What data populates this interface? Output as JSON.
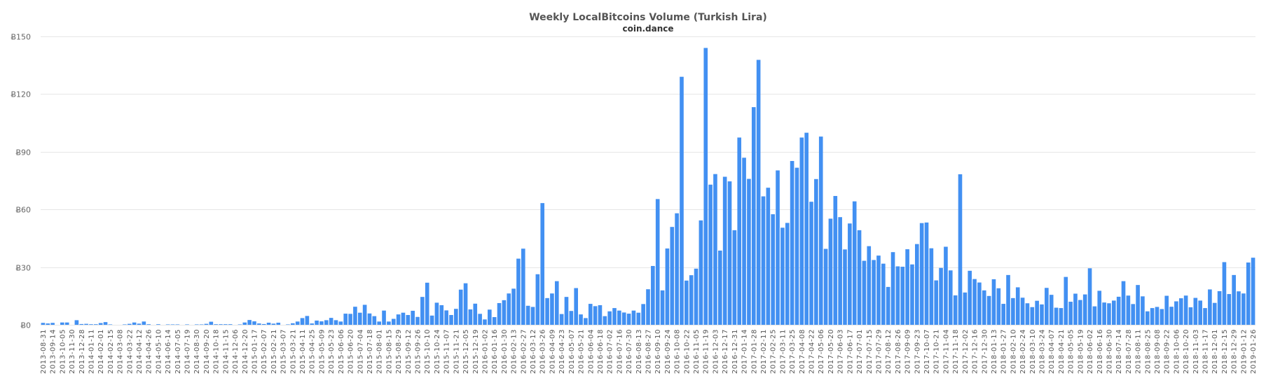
{
  "chart_data": {
    "type": "bar",
    "title": "Weekly LocalBitcoins Volume (Turkish Lira)",
    "subtitle": "coin.dance",
    "xlabel": "",
    "ylabel": "",
    "y_tick_prefix": "Ƀ",
    "yticks": [
      0,
      30,
      60,
      90,
      120,
      150
    ],
    "ylim": [
      0,
      150
    ],
    "grid": true,
    "legend": "none",
    "bar_color": "#4290f2",
    "categories": [
      "2013-08-31",
      "",
      "2013-09-14",
      "",
      "2013-10-05",
      "",
      "2013-11-30",
      "",
      "2013-12-28",
      "",
      "2014-01-11",
      "",
      "2014-02-01",
      "",
      "2014-02-15",
      "",
      "2014-03-08",
      "",
      "2014-03-22",
      "",
      "2014-04-12",
      "",
      "2014-04-26",
      "",
      "2014-05-10",
      "",
      "2014-06-14",
      "",
      "2014-07-05",
      "",
      "2014-07-19",
      "",
      "2014-08-30",
      "",
      "2014-09-20",
      "",
      "2014-10-18",
      "",
      "2014-11-15",
      "",
      "2014-12-06",
      "",
      "2014-12-20",
      "",
      "2015-01-17",
      "",
      "2015-02-07",
      "",
      "2015-02-21",
      "",
      "2015-03-07",
      "",
      "2015-03-21",
      "",
      "2015-04-11",
      "",
      "2015-04-25",
      "",
      "2015-05-09",
      "",
      "2015-05-23",
      "",
      "2015-06-06",
      "",
      "2015-06-20",
      "",
      "2015-07-04",
      "",
      "2015-07-18",
      "",
      "2015-08-01",
      "",
      "2015-08-15",
      "",
      "2015-08-29",
      "",
      "2015-09-12",
      "",
      "2015-09-26",
      "",
      "2015-10-10",
      "",
      "2015-10-24",
      "",
      "2015-11-07",
      "",
      "2015-11-21",
      "",
      "2015-12-05",
      "",
      "2015-12-19",
      "",
      "2016-01-02",
      "",
      "2016-01-16",
      "",
      "2016-01-30",
      "",
      "2016-02-13",
      "",
      "2016-02-27",
      "",
      "2016-03-12",
      "",
      "2016-03-26",
      "",
      "2016-04-09",
      "",
      "2016-04-23",
      "",
      "2016-05-07",
      "",
      "2016-05-21",
      "",
      "2016-06-04",
      "",
      "2016-06-18",
      "",
      "2016-07-02",
      "",
      "2016-07-16",
      "",
      "2016-07-30",
      "",
      "2016-08-13",
      "",
      "2016-08-27",
      "",
      "2016-09-10",
      "",
      "2016-09-24",
      "",
      "2016-10-08",
      "",
      "2016-10-22",
      "",
      "2016-11-05",
      "",
      "2016-11-19",
      "",
      "2016-12-03",
      "",
      "2016-12-17",
      "",
      "2016-12-31",
      "",
      "2017-01-14",
      "",
      "2017-01-28",
      "",
      "2017-02-11",
      "",
      "2017-02-25",
      "",
      "2017-03-11",
      "",
      "2017-03-25",
      "",
      "2017-04-08",
      "",
      "2017-04-22",
      "",
      "2017-05-06",
      "",
      "2017-05-20",
      "",
      "2017-06-03",
      "",
      "2017-06-17",
      "",
      "2017-07-01",
      "",
      "2017-07-15",
      "",
      "2017-07-29",
      "",
      "2017-08-12",
      "",
      "2017-08-26",
      "",
      "2017-09-09",
      "",
      "2017-09-23",
      "",
      "2017-10-07",
      "",
      "2017-10-21",
      "",
      "2017-11-04",
      "",
      "2017-11-18",
      "",
      "2017-12-02",
      "",
      "2017-12-16",
      "",
      "2017-12-30",
      "",
      "2018-01-13",
      "",
      "2018-01-27",
      "",
      "2018-02-10",
      "",
      "2018-02-24",
      "",
      "2018-03-10",
      "",
      "2018-03-24",
      "",
      "2018-04-07",
      "",
      "2018-04-21",
      "",
      "2018-05-05",
      "",
      "2018-05-19",
      "",
      "2018-06-02",
      "",
      "2018-06-16",
      "",
      "2018-06-30",
      "",
      "2018-07-14",
      "",
      "2018-07-28",
      "",
      "2018-08-11",
      "",
      "2018-08-25",
      "",
      "2018-09-08",
      "",
      "2018-09-22",
      "",
      "2018-10-06",
      "",
      "2018-10-20",
      "",
      "2018-11-03",
      "",
      "2018-11-17",
      "",
      "2018-12-01",
      "",
      "2018-12-15",
      "",
      "2018-12-29",
      "",
      "2019-01-12",
      "",
      "2019-01-26"
    ],
    "values": [
      1.0,
      0.7,
      1.0,
      0,
      1.2,
      1.2,
      0,
      2.4,
      0.4,
      0.5,
      0.3,
      0.3,
      0.9,
      1.4,
      0.2,
      0,
      0,
      0.2,
      0.5,
      1.2,
      0.6,
      1.7,
      0.3,
      0,
      0.3,
      0,
      0.2,
      0.2,
      0.2,
      0,
      0.2,
      0,
      0.2,
      0.2,
      0.5,
      1.6,
      0.3,
      0.3,
      0.3,
      0.3,
      0,
      0.2,
      1.2,
      2.5,
      1.8,
      0.7,
      0.4,
      1.1,
      0.6,
      1.1,
      0,
      0.2,
      0.8,
      1.7,
      3.5,
      4.6,
      0.7,
      2.2,
      1.8,
      2.4,
      3.6,
      2.4,
      1.7,
      5.8,
      5.7,
      9.4,
      6.3,
      10.4,
      5.9,
      4.5,
      1.7,
      7.4,
      1.7,
      3.1,
      5.4,
      6.3,
      5.1,
      7.3,
      4.1,
      14.5,
      21.9,
      4.8,
      11.5,
      10.2,
      7.5,
      5.1,
      8.3,
      18.3,
      21.6,
      8.0,
      11.0,
      5.7,
      2.8,
      7.9,
      4.0,
      11.3,
      12.8,
      16.3,
      18.8,
      34.4,
      39.6,
      9.9,
      9.3,
      26.3,
      63.3,
      13.9,
      16.3,
      22.7,
      5.6,
      14.5,
      7.2,
      19.1,
      5.4,
      3.5,
      10.9,
      9.7,
      10.2,
      4.5,
      7.0,
      8.7,
      7.4,
      6.4,
      5.8,
      7.4,
      6.3,
      10.8,
      18.5,
      30.6,
      65.4,
      17.9,
      39.7,
      50.9,
      58.0,
      129.0,
      23.0,
      25.8,
      29.2,
      54.3,
      144.0,
      72.9,
      78.4,
      38.6,
      77.0,
      74.6,
      49.2,
      97.4,
      86.9,
      75.9,
      113.2,
      137.8,
      66.8,
      71.3,
      57.5,
      80.3,
      50.5,
      53.0,
      85.2,
      81.7,
      97.4,
      99.9,
      64.0,
      75.8,
      97.9,
      39.5,
      55.2,
      67.0,
      56.0,
      39.2,
      52.7,
      64.2,
      49.2,
      33.3,
      40.9,
      33.7,
      36.0,
      31.8,
      19.7,
      37.8,
      30.4,
      30.2,
      39.3,
      31.4,
      42.0,
      52.9,
      53.2,
      39.8,
      23.1,
      29.6,
      40.6,
      28.3,
      15.3,
      78.3,
      16.8,
      28.1,
      23.8,
      22.0,
      17.9,
      15.0,
      23.7,
      19.0,
      10.9,
      25.9,
      13.9,
      19.5,
      14.1,
      11.2,
      9.2,
      12.5,
      10.6,
      19.2,
      15.6,
      8.9,
      8.7,
      24.9,
      12.0,
      16.2,
      12.9,
      15.8,
      29.4,
      9.6,
      17.7,
      11.6,
      11.2,
      12.6,
      14.6,
      22.7,
      15.2,
      10.8,
      20.7,
      14.8,
      7.0,
      8.7,
      9.3,
      8.2,
      15.1,
      9.4,
      12.2,
      13.8,
      15.2,
      9.1,
      14.0,
      12.6,
      8.7,
      18.4,
      11.4,
      17.5,
      32.6,
      16.0,
      25.9,
      17.4,
      16.3,
      32.4,
      34.9
    ]
  }
}
